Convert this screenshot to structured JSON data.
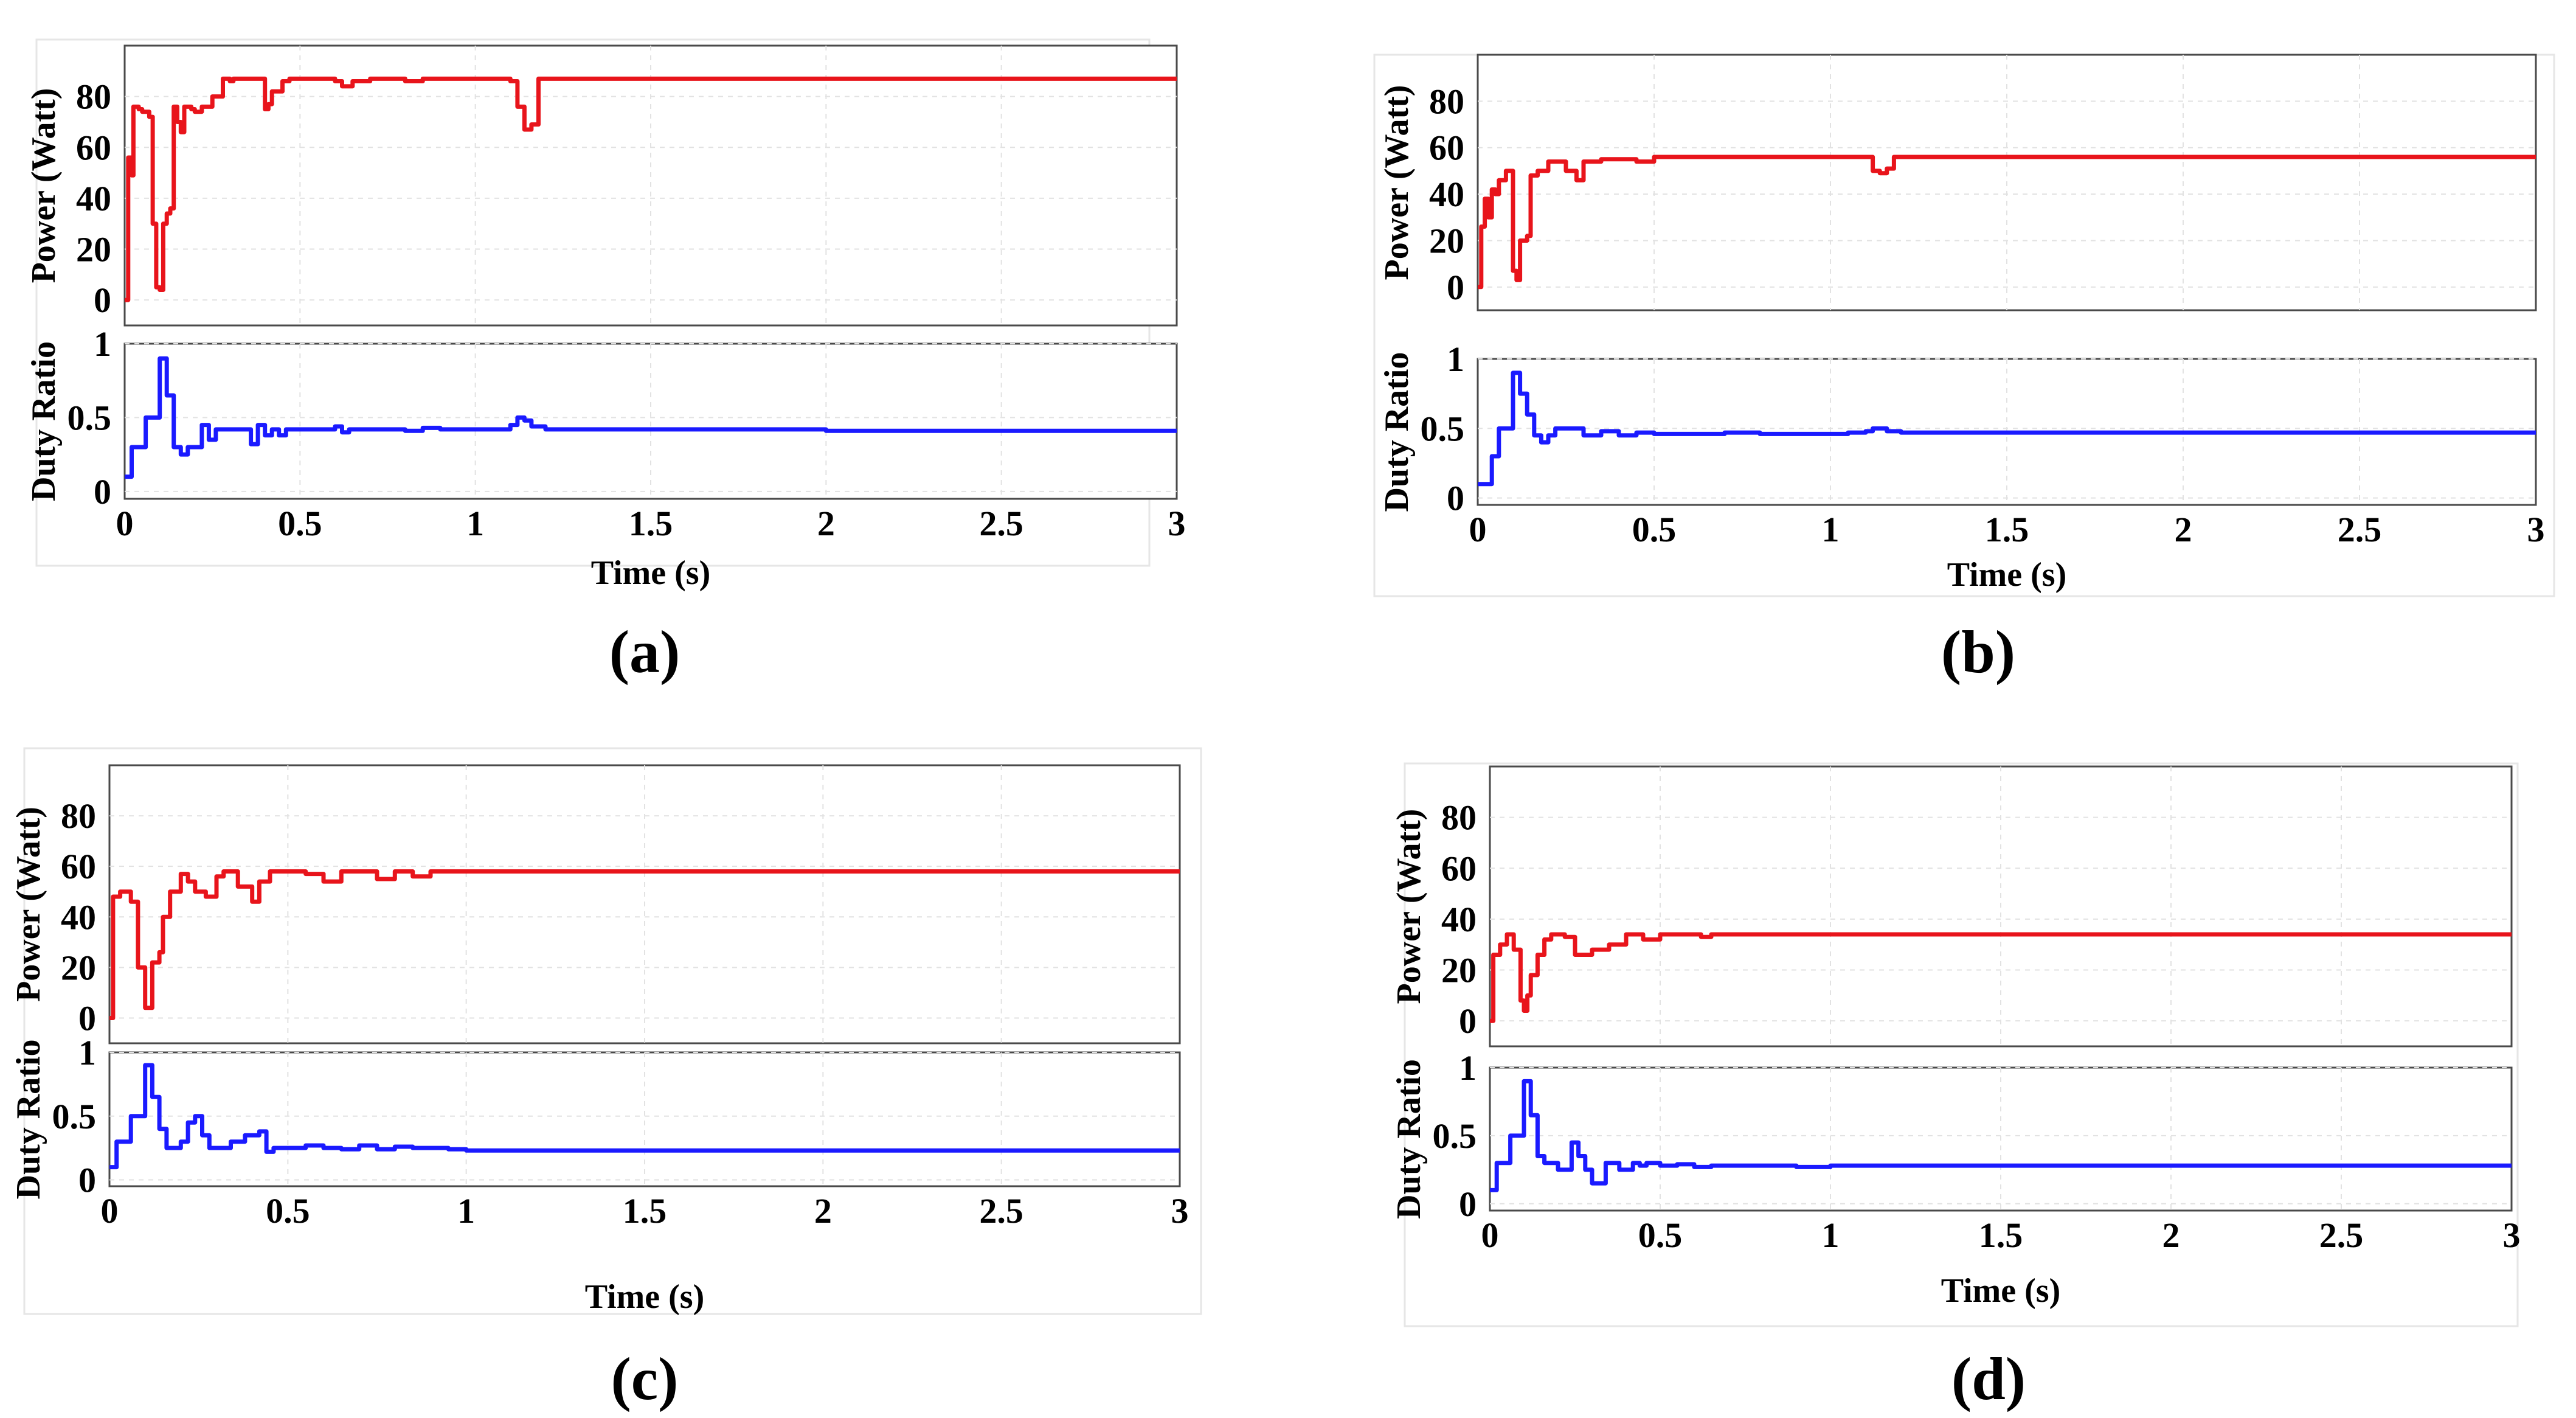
{
  "chart_data": [
    {
      "type": "line",
      "panel_label": "(a)",
      "xlabel": "Time (s)",
      "x_ticks": [
        "0",
        "0.5",
        "1",
        "1.5",
        "2",
        "2.5",
        "3"
      ],
      "xlim": [
        0,
        3
      ],
      "subplots": [
        {
          "ylabel": "Power (Watt)",
          "ylim": [
            -10,
            100
          ],
          "y_ticks": [
            "0",
            "20",
            "40",
            "60",
            "80"
          ],
          "y_tick_values": [
            0,
            20,
            40,
            60,
            80
          ],
          "color": "#e8141b",
          "x": [
            0,
            0.01,
            0.02,
            0.025,
            0.04,
            0.05,
            0.07,
            0.08,
            0.09,
            0.1,
            0.11,
            0.12,
            0.13,
            0.14,
            0.15,
            0.16,
            0.17,
            0.19,
            0.2,
            0.22,
            0.25,
            0.28,
            0.3,
            0.31,
            0.4,
            0.41,
            0.42,
            0.45,
            0.47,
            0.5,
            0.6,
            0.62,
            0.65,
            0.7,
            0.75,
            0.8,
            0.85,
            0.9,
            1.0,
            1.05,
            1.1,
            1.12,
            1.14,
            1.16,
            1.18,
            1.2,
            1.5,
            2.0,
            2.5,
            3.0
          ],
          "values": [
            0,
            56,
            49,
            76,
            75,
            74,
            72,
            30,
            5,
            4,
            30,
            34,
            36,
            76,
            70,
            66,
            76,
            75,
            74,
            76,
            80,
            87,
            86,
            87,
            75,
            77,
            82,
            86,
            87,
            87,
            86,
            84,
            86,
            87,
            87,
            86,
            87,
            87,
            87,
            87,
            86,
            76,
            67,
            69,
            87,
            87,
            87,
            87,
            87,
            87
          ]
        },
        {
          "ylabel": "Duty Ratio",
          "ylim": [
            -0.05,
            1
          ],
          "y_ticks": [
            "0",
            "0.5",
            "1"
          ],
          "y_tick_values": [
            0,
            0.5,
            1
          ],
          "color": "#1a1aff",
          "x": [
            0,
            0.02,
            0.04,
            0.06,
            0.08,
            0.1,
            0.12,
            0.14,
            0.16,
            0.18,
            0.2,
            0.22,
            0.24,
            0.26,
            0.3,
            0.36,
            0.38,
            0.4,
            0.42,
            0.44,
            0.46,
            0.5,
            0.6,
            0.62,
            0.64,
            0.7,
            0.8,
            0.85,
            0.9,
            1.0,
            1.05,
            1.1,
            1.12,
            1.14,
            1.16,
            1.2,
            1.5,
            2.0,
            2.5,
            3.0
          ],
          "values": [
            0.1,
            0.3,
            0.3,
            0.5,
            0.5,
            0.9,
            0.65,
            0.3,
            0.25,
            0.3,
            0.3,
            0.45,
            0.35,
            0.42,
            0.42,
            0.32,
            0.45,
            0.38,
            0.42,
            0.38,
            0.42,
            0.42,
            0.44,
            0.4,
            0.42,
            0.42,
            0.41,
            0.43,
            0.42,
            0.42,
            0.42,
            0.45,
            0.5,
            0.48,
            0.44,
            0.42,
            0.42,
            0.41,
            0.41,
            0.41
          ]
        }
      ]
    },
    {
      "type": "line",
      "panel_label": "(b)",
      "xlabel": "Time (s)",
      "x_ticks": [
        "0",
        "0.5",
        "1",
        "1.5",
        "2",
        "2.5",
        "3"
      ],
      "xlim": [
        0,
        3
      ],
      "subplots": [
        {
          "ylabel": "Power (Watt)",
          "ylim": [
            -10,
            100
          ],
          "y_ticks": [
            "0",
            "20",
            "40",
            "60",
            "80"
          ],
          "y_tick_values": [
            0,
            20,
            40,
            60,
            80
          ],
          "color": "#e8141b",
          "x": [
            0,
            0.01,
            0.02,
            0.03,
            0.04,
            0.05,
            0.06,
            0.08,
            0.1,
            0.11,
            0.12,
            0.14,
            0.15,
            0.17,
            0.2,
            0.25,
            0.28,
            0.3,
            0.32,
            0.35,
            0.4,
            0.45,
            0.5,
            1.0,
            1.1,
            1.12,
            1.14,
            1.16,
            1.18,
            1.2,
            1.5,
            2.0,
            2.5,
            3.0
          ],
          "values": [
            0,
            26,
            38,
            30,
            42,
            40,
            46,
            50,
            7,
            3,
            20,
            22,
            48,
            50,
            54,
            50,
            46,
            54,
            54,
            55,
            55,
            54,
            56,
            56,
            56,
            50,
            49,
            51,
            56,
            56,
            56,
            56,
            56,
            56
          ]
        },
        {
          "ylabel": "Duty Ratio",
          "ylim": [
            -0.05,
            1
          ],
          "y_ticks": [
            "0",
            "0.5",
            "1"
          ],
          "y_tick_values": [
            0,
            0.5,
            1
          ],
          "color": "#1a1aff",
          "x": [
            0,
            0.02,
            0.04,
            0.06,
            0.08,
            0.1,
            0.12,
            0.14,
            0.16,
            0.18,
            0.2,
            0.22,
            0.26,
            0.3,
            0.35,
            0.4,
            0.45,
            0.5,
            0.6,
            0.7,
            0.8,
            0.9,
            1.0,
            1.05,
            1.1,
            1.12,
            1.14,
            1.16,
            1.2,
            1.5,
            2.0,
            2.5,
            3.0
          ],
          "values": [
            0.1,
            0.1,
            0.3,
            0.5,
            0.5,
            0.9,
            0.75,
            0.6,
            0.45,
            0.4,
            0.45,
            0.5,
            0.5,
            0.45,
            0.48,
            0.45,
            0.47,
            0.46,
            0.46,
            0.47,
            0.46,
            0.46,
            0.46,
            0.47,
            0.48,
            0.5,
            0.5,
            0.48,
            0.47,
            0.47,
            0.47,
            0.47,
            0.47
          ]
        }
      ]
    },
    {
      "type": "line",
      "panel_label": "(c)",
      "xlabel": "Time (s)",
      "x_ticks": [
        "0",
        "0.5",
        "1",
        "1.5",
        "2",
        "2.5",
        "3"
      ],
      "xlim": [
        0,
        3
      ],
      "subplots": [
        {
          "ylabel": "Power (Watt)",
          "ylim": [
            -10,
            100
          ],
          "y_ticks": [
            "0",
            "20",
            "40",
            "60",
            "80"
          ],
          "y_tick_values": [
            0,
            20,
            40,
            60,
            80
          ],
          "color": "#e8141b",
          "x": [
            0,
            0.01,
            0.03,
            0.06,
            0.08,
            0.1,
            0.12,
            0.14,
            0.15,
            0.17,
            0.2,
            0.22,
            0.24,
            0.27,
            0.3,
            0.32,
            0.36,
            0.4,
            0.42,
            0.45,
            0.5,
            0.55,
            0.6,
            0.65,
            0.7,
            0.75,
            0.8,
            0.85,
            0.9,
            1.0,
            1.5,
            2.0,
            2.5,
            3.0
          ],
          "values": [
            0,
            48,
            50,
            46,
            20,
            4,
            22,
            26,
            40,
            50,
            57,
            54,
            50,
            48,
            56,
            58,
            52,
            46,
            54,
            58,
            58,
            57,
            54,
            58,
            58,
            55,
            58,
            56,
            58,
            58,
            58,
            58,
            58,
            58
          ]
        },
        {
          "ylabel": "Duty Ratio",
          "ylim": [
            -0.05,
            1
          ],
          "y_ticks": [
            "0",
            "0.5",
            "1"
          ],
          "y_tick_values": [
            0,
            0.5,
            1
          ],
          "color": "#1a1aff",
          "x": [
            0,
            0.02,
            0.04,
            0.06,
            0.08,
            0.1,
            0.12,
            0.14,
            0.16,
            0.2,
            0.22,
            0.24,
            0.26,
            0.28,
            0.3,
            0.34,
            0.38,
            0.42,
            0.44,
            0.46,
            0.5,
            0.55,
            0.6,
            0.65,
            0.7,
            0.75,
            0.8,
            0.85,
            0.9,
            0.95,
            1.0,
            1.1,
            1.2,
            1.5,
            2.0,
            2.5,
            3.0
          ],
          "values": [
            0.1,
            0.3,
            0.3,
            0.5,
            0.5,
            0.9,
            0.65,
            0.4,
            0.25,
            0.3,
            0.45,
            0.5,
            0.35,
            0.25,
            0.25,
            0.3,
            0.35,
            0.38,
            0.22,
            0.25,
            0.25,
            0.27,
            0.25,
            0.24,
            0.27,
            0.24,
            0.26,
            0.25,
            0.25,
            0.24,
            0.23,
            0.23,
            0.23,
            0.23,
            0.23,
            0.23,
            0.23
          ]
        }
      ]
    },
    {
      "type": "line",
      "panel_label": "(d)",
      "xlabel": "Time (s)",
      "x_ticks": [
        "0",
        "0.5",
        "1",
        "1.5",
        "2",
        "2.5",
        "3"
      ],
      "xlim": [
        0,
        3
      ],
      "subplots": [
        {
          "ylabel": "Power (Watt)",
          "ylim": [
            -10,
            100
          ],
          "y_ticks": [
            "0",
            "20",
            "40",
            "60",
            "80"
          ],
          "y_tick_values": [
            0,
            20,
            40,
            60,
            80
          ],
          "color": "#e8141b",
          "x": [
            0,
            0.01,
            0.03,
            0.05,
            0.07,
            0.09,
            0.1,
            0.11,
            0.12,
            0.14,
            0.16,
            0.18,
            0.2,
            0.22,
            0.25,
            0.3,
            0.35,
            0.4,
            0.45,
            0.5,
            0.6,
            0.62,
            0.65,
            1.0,
            1.5,
            2.0,
            2.5,
            3.0
          ],
          "values": [
            0,
            26,
            30,
            34,
            28,
            8,
            4,
            10,
            18,
            26,
            32,
            34,
            34,
            33,
            26,
            28,
            30,
            34,
            32,
            34,
            34,
            33,
            34,
            34,
            34,
            34,
            34,
            34
          ]
        },
        {
          "ylabel": "Duty Ratio",
          "ylim": [
            -0.05,
            1
          ],
          "y_ticks": [
            "0",
            "0.5",
            "1"
          ],
          "y_tick_values": [
            0,
            0.5,
            1
          ],
          "color": "#1a1aff",
          "x": [
            0,
            0.02,
            0.04,
            0.06,
            0.08,
            0.1,
            0.12,
            0.14,
            0.16,
            0.2,
            0.24,
            0.26,
            0.28,
            0.3,
            0.34,
            0.38,
            0.42,
            0.44,
            0.46,
            0.5,
            0.55,
            0.6,
            0.65,
            0.7,
            0.8,
            0.9,
            1.0,
            1.1,
            1.2,
            1.5,
            2.0,
            2.5,
            3.0
          ],
          "values": [
            0.1,
            0.3,
            0.3,
            0.5,
            0.5,
            0.9,
            0.65,
            0.35,
            0.3,
            0.25,
            0.45,
            0.35,
            0.25,
            0.15,
            0.3,
            0.25,
            0.3,
            0.28,
            0.3,
            0.28,
            0.29,
            0.27,
            0.28,
            0.28,
            0.28,
            0.27,
            0.28,
            0.28,
            0.28,
            0.28,
            0.28,
            0.28,
            0.28
          ]
        }
      ]
    }
  ]
}
